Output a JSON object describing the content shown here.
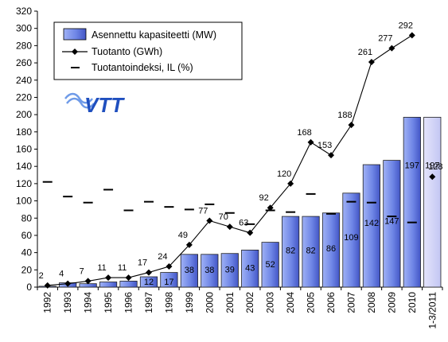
{
  "chart_data": {
    "type": "bar",
    "categories": [
      "1992",
      "1993",
      "1994",
      "1995",
      "1996",
      "1997",
      "1998",
      "1999",
      "2000",
      "2001",
      "2002",
      "2003",
      "2004",
      "2005",
      "2006",
      "2007",
      "2008",
      "2009",
      "2010",
      "1-3/2011"
    ],
    "series": [
      {
        "name": "Asennettu kapasiteetti (MW)",
        "type": "bar",
        "color": "#7b8fe8",
        "values": [
          1,
          5,
          4,
          6,
          7,
          12,
          17,
          38,
          38,
          39,
          43,
          52,
          82,
          82,
          86,
          109,
          142,
          147,
          197,
          197
        ],
        "labels": [
          null,
          null,
          null,
          null,
          null,
          "12",
          "17",
          "38",
          "38",
          "39",
          "43",
          "52",
          "82",
          "82",
          "86",
          "109",
          "142",
          "147",
          "197",
          "197"
        ],
        "highlight_last": true
      },
      {
        "name": "Tuotanto (GWh)",
        "type": "line",
        "color": "#000000",
        "values": [
          2,
          4,
          7,
          11,
          11,
          17,
          24,
          49,
          77,
          70,
          63,
          92,
          120,
          168,
          153,
          188,
          261,
          277,
          292,
          128
        ],
        "labels": [
          "2",
          "4",
          "7",
          "11",
          "11",
          "17",
          "24",
          "49",
          "77",
          "70",
          "63",
          "92",
          "120",
          "168",
          "153",
          "188",
          "261",
          "277",
          "292",
          "128"
        ],
        "connected_until_index": 18
      },
      {
        "name": "Tuotantoindeksi, IL (%)",
        "type": "marker-dash",
        "color": "#000000",
        "values": [
          122,
          105,
          98,
          113,
          89,
          99,
          93,
          90,
          96,
          86,
          73,
          89,
          87,
          108,
          85,
          99,
          98,
          82,
          75,
          null
        ]
      }
    ],
    "ylim": [
      0,
      320
    ],
    "yticks": [
      0,
      20,
      40,
      60,
      80,
      100,
      120,
      140,
      160,
      180,
      200,
      220,
      240,
      260,
      280,
      300,
      320
    ],
    "grid": false,
    "legend": "top-left",
    "title": "",
    "xlabel": "",
    "ylabel": ""
  },
  "logo": {
    "text": "VTT",
    "color": "#1f4fbf"
  }
}
